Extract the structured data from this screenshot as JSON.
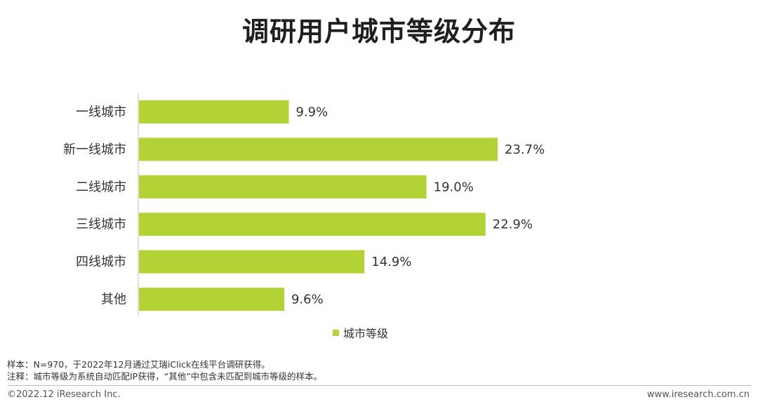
{
  "chart_data": {
    "type": "bar",
    "orientation": "horizontal",
    "title": "调研用户城市等级分布",
    "categories": [
      "一线城市",
      "新一线城市",
      "二线城市",
      "三线城市",
      "四线城市",
      "其他"
    ],
    "series": [
      {
        "name": "城市等级",
        "values": [
          9.9,
          23.7,
          19.0,
          22.9,
          14.9,
          9.6
        ]
      }
    ],
    "value_labels": [
      "9.9%",
      "23.7%",
      "19.0%",
      "22.9%",
      "14.9%",
      "9.6%"
    ],
    "xlim": [
      0,
      30
    ],
    "grid": false,
    "legend": "bottom-center",
    "bar_color": "#b2d235"
  },
  "notes": [
    "样本：N=970，于2022年12月通过艾瑞iClick在线平台调研获得。",
    "注释：城市等级为系统自动匹配IP获得，“其他”中包含未匹配到城市等级的样本。"
  ],
  "footer": {
    "copyright": "©2022.12 iResearch Inc.",
    "website": "www.iresearch.com.cn"
  }
}
